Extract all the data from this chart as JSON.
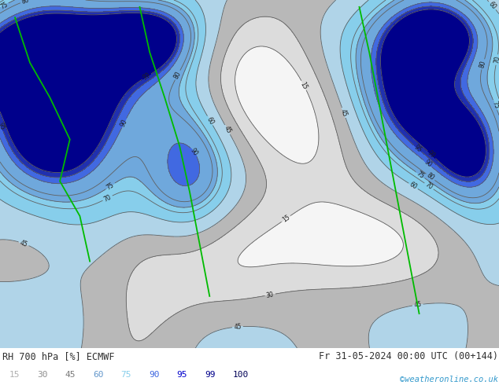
{
  "title_left": "RH 700 hPa [%] ECMWF",
  "title_right": "Fr 31-05-2024 00:00 UTC (00+144)",
  "watermark": "©weatheronline.co.uk",
  "legend_values": [
    "15",
    "30",
    "45",
    "60",
    "75",
    "90",
    "95",
    "99",
    "100"
  ],
  "legend_label_colors": [
    "#b0b0b0",
    "#909090",
    "#787878",
    "#6699cc",
    "#87ceeb",
    "#4169e1",
    "#0000cd",
    "#00008b",
    "#000055"
  ],
  "bg_color": "#ffffff",
  "map_bg": "#d8d8d8",
  "fig_width": 6.34,
  "fig_height": 4.9,
  "dpi": 100,
  "left_label_color": "#303030",
  "right_label_color": "#303030",
  "watermark_color": "#3399cc",
  "font_size_title": 8.5,
  "font_size_legend": 8.0,
  "colorbar_colors": [
    "#f2f2f2",
    "#d0d0d0",
    "#aaaaaa",
    "#add8e6",
    "#87ceeb",
    "#6495ed",
    "#3a5fcd",
    "#1a1acd",
    "#00008b"
  ],
  "map_fill_colors": [
    "#f5f5f5",
    "#dcdcdc",
    "#b8b8b8",
    "#b0d4e8",
    "#87ceeb",
    "#6fa8dc",
    "#4169e1",
    "#2030b0",
    "#00008b"
  ],
  "map_levels": [
    0,
    15,
    30,
    45,
    60,
    75,
    90,
    95,
    99,
    101
  ],
  "contour_levels": [
    15,
    30,
    45,
    60,
    70,
    75,
    80,
    90,
    95,
    99
  ],
  "contour_color": "#606060",
  "contour_lw": 0.6,
  "green_line_color": "#00bb00",
  "green_line_lw": 1.3
}
